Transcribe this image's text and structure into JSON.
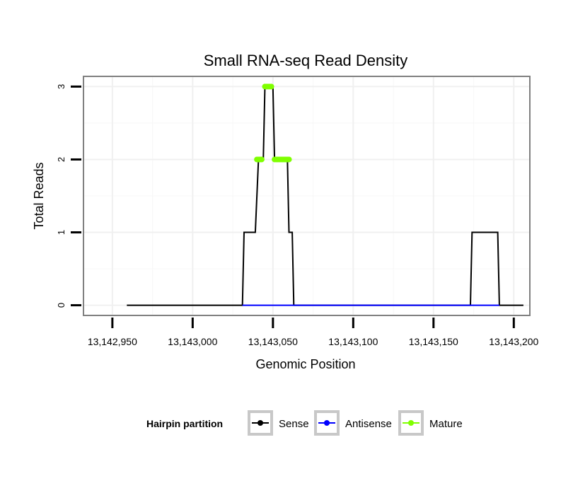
{
  "chart_data": {
    "type": "line",
    "title": "Small RNA-seq Read Density",
    "xlabel": "Genomic Position",
    "ylabel": "Total Reads",
    "xlim": [
      13142932,
      13143210
    ],
    "ylim": [
      -0.14,
      3.14
    ],
    "x_ticks": [
      13142950,
      13143000,
      13143050,
      13143100,
      13143150,
      13143200
    ],
    "x_tick_labels": [
      "13,142,950",
      "13,143,000",
      "13,143,050",
      "13,143,100",
      "13,143,150",
      "13,143,200"
    ],
    "y_ticks": [
      0,
      1,
      2,
      3
    ],
    "y_tick_labels": [
      "0",
      "1",
      "2",
      "3"
    ],
    "grid": true,
    "legend": {
      "title": "Hairpin partition",
      "position": "bottom",
      "entries": [
        "Sense",
        "Antisense",
        "Mature"
      ]
    },
    "series": [
      {
        "name": "Sense",
        "color": "#000000",
        "style": "line",
        "points": [
          [
            13142959,
            0
          ],
          [
            13143031,
            0
          ],
          [
            13143032,
            1
          ],
          [
            13143039,
            1
          ],
          [
            13143041,
            2
          ],
          [
            13143044,
            2
          ],
          [
            13143045,
            3
          ],
          [
            13143050,
            3
          ],
          [
            13143051,
            2
          ],
          [
            13143059,
            2
          ],
          [
            13143060,
            1
          ],
          [
            13143062,
            1
          ],
          [
            13143063,
            0
          ],
          [
            13143173,
            0
          ],
          [
            13143174,
            1
          ],
          [
            13143190,
            1
          ],
          [
            13143191,
            0
          ],
          [
            13143206,
            0
          ]
        ]
      },
      {
        "name": "Antisense",
        "color": "#0000ff",
        "style": "line",
        "points": [
          [
            13143031,
            0
          ],
          [
            13143063,
            0
          ],
          [
            13143173,
            0
          ],
          [
            13143191,
            0
          ]
        ]
      },
      {
        "name": "Mature",
        "color": "#7fff00",
        "style": "segments",
        "segments": [
          {
            "x0": 13143040,
            "x1": 13143043,
            "y": 2
          },
          {
            "x0": 13143045,
            "x1": 13143049,
            "y": 3
          },
          {
            "x0": 13143051,
            "x1": 13143060,
            "y": 2
          }
        ]
      }
    ]
  }
}
